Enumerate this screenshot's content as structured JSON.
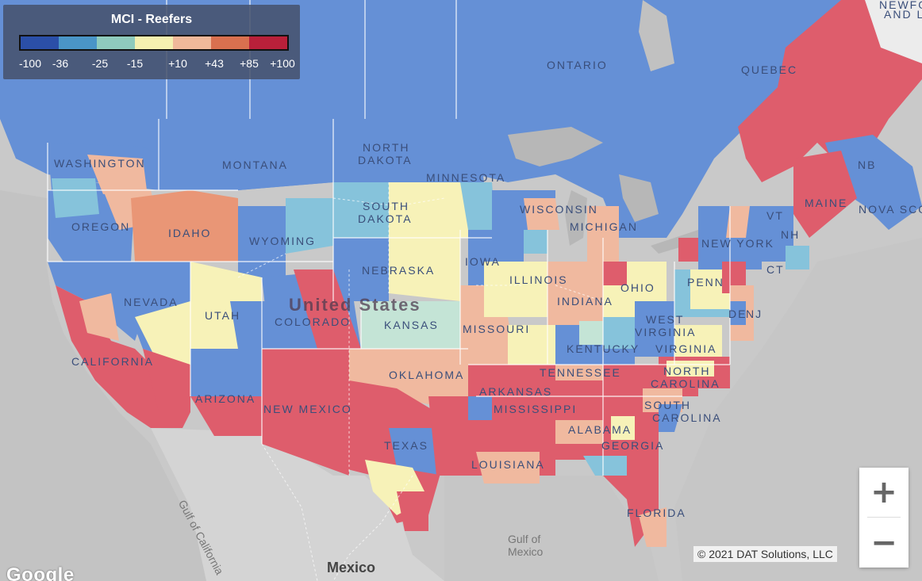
{
  "legend": {
    "title": "MCI - Reefers",
    "colors": [
      "#2b4fa8",
      "#4a95c7",
      "#8fcbbd",
      "#f5f0b0",
      "#f0b89a",
      "#d9704f",
      "#b9203a"
    ],
    "ticks": [
      "-100",
      "-36",
      "-25",
      "-15",
      "+10",
      "+43",
      "+85",
      "+100"
    ]
  },
  "region_labels": [
    {
      "text": "WASHINGTON",
      "kind": "st"
    },
    {
      "text": "MONTANA",
      "kind": "st"
    },
    {
      "text": "NORTH",
      "kind": "st"
    },
    {
      "text": "DAKOTA",
      "kind": "st"
    },
    {
      "text": "MINNESOTA",
      "kind": "st"
    },
    {
      "text": "OREGON",
      "kind": "st"
    },
    {
      "text": "IDAHO",
      "kind": "st"
    },
    {
      "text": "SOUTH",
      "kind": "st"
    },
    {
      "text": "DAKOTA",
      "kind": "st"
    },
    {
      "text": "WYOMING",
      "kind": "st"
    },
    {
      "text": "WISCONSIN",
      "kind": "st"
    },
    {
      "text": "MICHIGAN",
      "kind": "st"
    },
    {
      "text": "IOWA",
      "kind": "st"
    },
    {
      "text": "NEBRASKA",
      "kind": "st"
    },
    {
      "text": "NEVADA",
      "kind": "st"
    },
    {
      "text": "UTAH",
      "kind": "st"
    },
    {
      "text": "COLORADO",
      "kind": "st"
    },
    {
      "text": "KANSAS",
      "kind": "st"
    },
    {
      "text": "ILLINOIS",
      "kind": "st"
    },
    {
      "text": "INDIANA",
      "kind": "st"
    },
    {
      "text": "OHIO",
      "kind": "st"
    },
    {
      "text": "MISSOURI",
      "kind": "st"
    },
    {
      "text": "CALIFORNIA",
      "kind": "st"
    },
    {
      "text": "KENTUCKY",
      "kind": "st"
    },
    {
      "text": "WEST",
      "kind": "st"
    },
    {
      "text": "VIRGINIA",
      "kind": "st"
    },
    {
      "text": "VIRGINIA",
      "kind": "st"
    },
    {
      "text": "PENN",
      "kind": "st"
    },
    {
      "text": "NEW YORK",
      "kind": "st"
    },
    {
      "text": "ARIZONA",
      "kind": "st"
    },
    {
      "text": "NEW MEXICO",
      "kind": "st"
    },
    {
      "text": "OKLAHOMA",
      "kind": "st"
    },
    {
      "text": "ARKANSAS",
      "kind": "st"
    },
    {
      "text": "TENNESSEE",
      "kind": "st"
    },
    {
      "text": "NORTH",
      "kind": "st"
    },
    {
      "text": "CAROLINA",
      "kind": "st"
    },
    {
      "text": "SOUTH",
      "kind": "st"
    },
    {
      "text": "CAROLINA",
      "kind": "st"
    },
    {
      "text": "MISSISSIPPI",
      "kind": "st"
    },
    {
      "text": "ALABAMA",
      "kind": "st"
    },
    {
      "text": "GEORGIA",
      "kind": "st"
    },
    {
      "text": "TEXAS",
      "kind": "st"
    },
    {
      "text": "LOUISIANA",
      "kind": "st"
    },
    {
      "text": "FLORIDA",
      "kind": "st"
    },
    {
      "text": "MAINE",
      "kind": "st"
    },
    {
      "text": "VT",
      "kind": "st"
    },
    {
      "text": "NH",
      "kind": "st"
    },
    {
      "text": "CT",
      "kind": "st"
    },
    {
      "text": "DE",
      "kind": "st"
    },
    {
      "text": "NJ",
      "kind": "st"
    },
    {
      "text": "ONTARIO",
      "kind": "st"
    },
    {
      "text": "QUEBEC",
      "kind": "st"
    },
    {
      "text": "NB",
      "kind": "st"
    },
    {
      "text": "NOVA SCO",
      "kind": "st"
    },
    {
      "text": "NEWFO",
      "kind": "st"
    },
    {
      "text": "AND L",
      "kind": "st"
    },
    {
      "text": "United States",
      "kind": "big"
    },
    {
      "text": "Mexico",
      "kind": "country"
    },
    {
      "text": "Gulf of",
      "kind": "water"
    },
    {
      "text": "Mexico",
      "kind": "water"
    },
    {
      "text": "Gulf of California",
      "kind": "water"
    }
  ],
  "zoom": {
    "in_label": "+",
    "out_label": "−"
  },
  "copyright": "© 2021 DAT Solutions, LLC",
  "logo_text": "Google"
}
